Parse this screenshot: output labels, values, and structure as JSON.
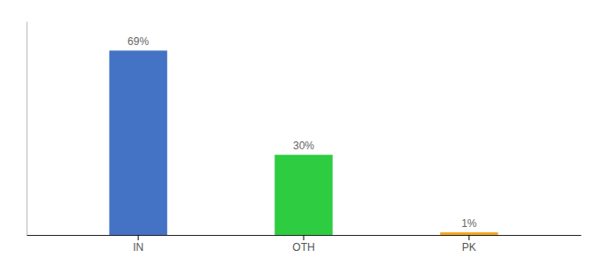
{
  "chart_data": {
    "type": "bar",
    "categories": [
      "IN",
      "OTH",
      "PK"
    ],
    "values": [
      69,
      30,
      1
    ],
    "value_labels": [
      "69%",
      "30%",
      "1%"
    ],
    "colors": [
      "#4472c4",
      "#2ecc40",
      "#f5a623"
    ],
    "ylim": [
      0,
      80
    ],
    "data_labels": true,
    "tick_labels": "x",
    "grid": false
  }
}
